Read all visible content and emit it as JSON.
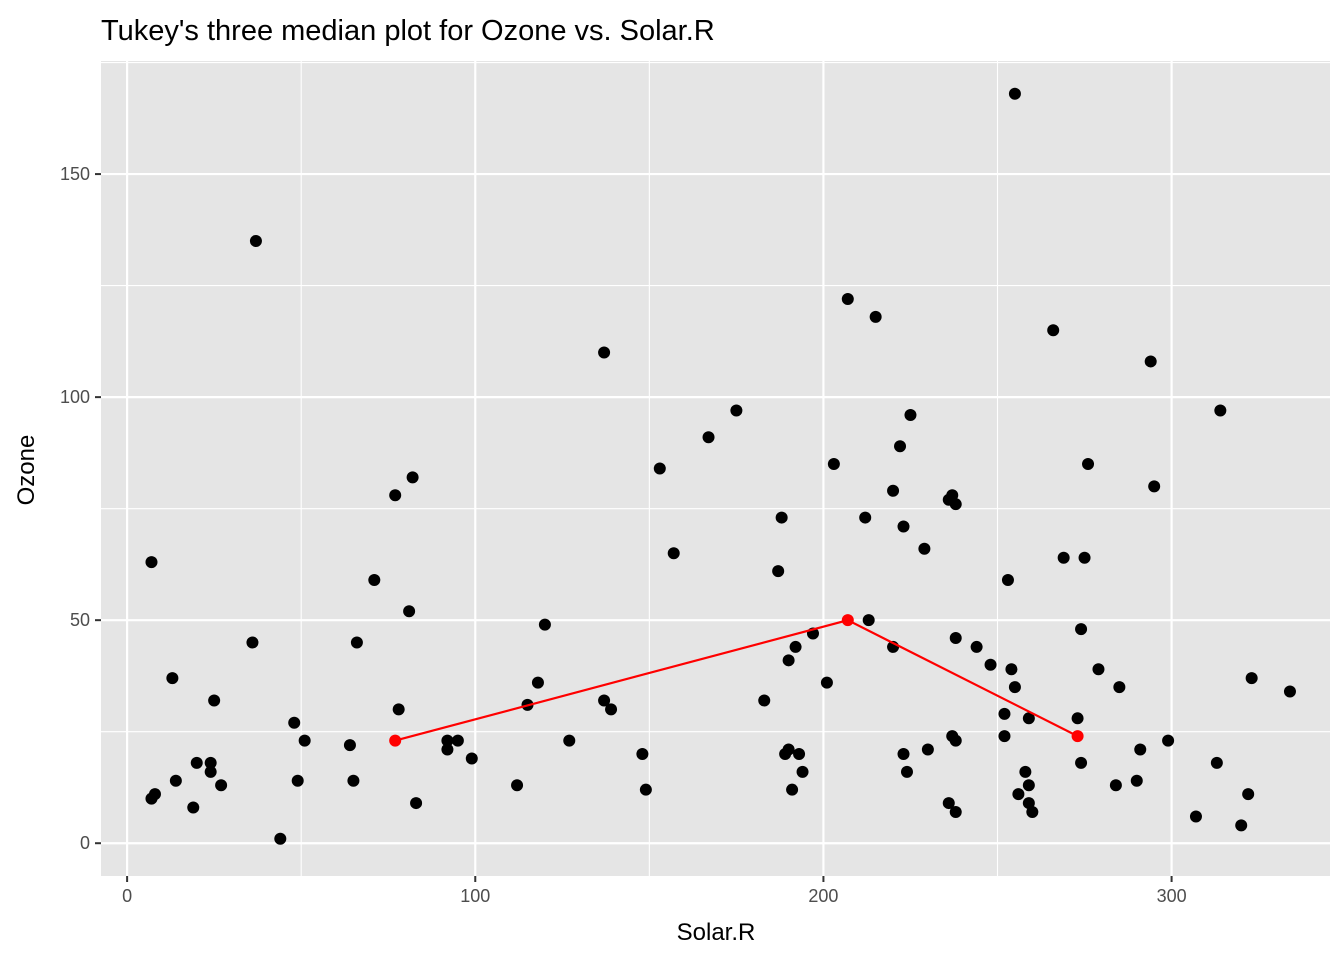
{
  "chart_data": {
    "type": "scatter",
    "title": "Tukey's three median plot for Ozone vs. Solar.R",
    "xlabel": "Solar.R",
    "ylabel": "Ozone",
    "xlim": [
      -7.5,
      345.5
    ],
    "ylim": [
      -7.35,
      175.35
    ],
    "x_ticks": [
      0,
      100,
      200,
      300
    ],
    "x_tick_labels": [
      "0",
      "100",
      "200",
      "300"
    ],
    "y_ticks": [
      0,
      50,
      100,
      150
    ],
    "y_tick_labels": [
      "0",
      "50",
      "100",
      "150"
    ],
    "grid": true,
    "panel_background": "#e5e5e5",
    "grid_color": "#ffffff",
    "point_color": "#000000",
    "line_color": "#ff0000",
    "points": [
      [
        190,
        41
      ],
      [
        118,
        36
      ],
      [
        149,
        12
      ],
      [
        313,
        18
      ],
      [
        299,
        23
      ],
      [
        99,
        19
      ],
      [
        19,
        8
      ],
      [
        194,
        16
      ],
      [
        256,
        11
      ],
      [
        290,
        14
      ],
      [
        274,
        18
      ],
      [
        65,
        14
      ],
      [
        334,
        34
      ],
      [
        307,
        6
      ],
      [
        78,
        30
      ],
      [
        322,
        11
      ],
      [
        44,
        1
      ],
      [
        8,
        11
      ],
      [
        320,
        4
      ],
      [
        25,
        32
      ],
      [
        92,
        23
      ],
      [
        66,
        45
      ],
      [
        266,
        115
      ],
      [
        13,
        37
      ],
      [
        252,
        29
      ],
      [
        223,
        71
      ],
      [
        279,
        39
      ],
      [
        127,
        23
      ],
      [
        291,
        21
      ],
      [
        323,
        37
      ],
      [
        148,
        20
      ],
      [
        191,
        12
      ],
      [
        284,
        13
      ],
      [
        37,
        135
      ],
      [
        120,
        49
      ],
      [
        137,
        32
      ],
      [
        269,
        64
      ],
      [
        248,
        40
      ],
      [
        236,
        77
      ],
      [
        175,
        97
      ],
      [
        314,
        97
      ],
      [
        276,
        85
      ],
      [
        7,
        10
      ],
      [
        48,
        27
      ],
      [
        260,
        7
      ],
      [
        274,
        48
      ],
      [
        285,
        35
      ],
      [
        187,
        61
      ],
      [
        220,
        79
      ],
      [
        7,
        63
      ],
      [
        258,
        16
      ],
      [
        295,
        80
      ],
      [
        294,
        108
      ],
      [
        223,
        20
      ],
      [
        81,
        52
      ],
      [
        82,
        82
      ],
      [
        213,
        50
      ],
      [
        275,
        64
      ],
      [
        253,
        59
      ],
      [
        254,
        39
      ],
      [
        83,
        9
      ],
      [
        24,
        16
      ],
      [
        77,
        78
      ],
      [
        255,
        35
      ],
      [
        229,
        66
      ],
      [
        207,
        122
      ],
      [
        222,
        89
      ],
      [
        137,
        110
      ],
      [
        192,
        44
      ],
      [
        273,
        28
      ],
      [
        157,
        65
      ],
      [
        64,
        22
      ],
      [
        71,
        59
      ],
      [
        51,
        23
      ],
      [
        115,
        31
      ],
      [
        244,
        44
      ],
      [
        190,
        21
      ],
      [
        259,
        9
      ],
      [
        36,
        45
      ],
      [
        255,
        168
      ],
      [
        212,
        73
      ],
      [
        238,
        76
      ],
      [
        215,
        118
      ],
      [
        153,
        84
      ],
      [
        203,
        85
      ],
      [
        225,
        96
      ],
      [
        237,
        78
      ],
      [
        188,
        73
      ],
      [
        167,
        91
      ],
      [
        197,
        47
      ],
      [
        183,
        32
      ],
      [
        189,
        20
      ],
      [
        95,
        23
      ],
      [
        92,
        21
      ],
      [
        252,
        24
      ],
      [
        220,
        44
      ],
      [
        230,
        21
      ],
      [
        259,
        28
      ],
      [
        236,
        9
      ],
      [
        259,
        13
      ],
      [
        238,
        46
      ],
      [
        24,
        18
      ],
      [
        112,
        13
      ],
      [
        237,
        24
      ],
      [
        224,
        16
      ],
      [
        27,
        13
      ],
      [
        238,
        23
      ],
      [
        201,
        36
      ],
      [
        238,
        7
      ],
      [
        14,
        14
      ],
      [
        139,
        30
      ],
      [
        49,
        14
      ],
      [
        20,
        18
      ],
      [
        193,
        20
      ]
    ],
    "median_line": {
      "x": [
        77,
        207,
        273
      ],
      "y": [
        23,
        50,
        24
      ]
    }
  }
}
